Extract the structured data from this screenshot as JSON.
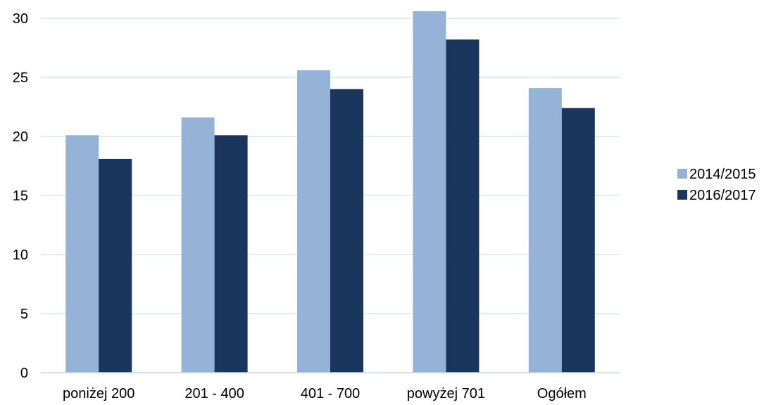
{
  "chart_data": {
    "type": "bar",
    "categories": [
      "poniżej 200",
      "201 - 400",
      "401 - 700",
      "powyżej 701",
      "Ogółem"
    ],
    "series": [
      {
        "name": "2014/2015",
        "values": [
          20.1,
          21.6,
          25.6,
          30.6,
          24.1
        ],
        "color": "#95b3d7"
      },
      {
        "name": "2016/2017",
        "values": [
          18.1,
          20.1,
          24.0,
          28.2,
          22.4
        ],
        "color": "#1b365d"
      }
    ],
    "ylim": [
      0,
      30
    ],
    "yticks": [
      0,
      5,
      10,
      15,
      20,
      25,
      30
    ],
    "grid": true,
    "gridColor": "#c6d9f1",
    "legend": "right",
    "title": "",
    "xlabel": "",
    "ylabel": ""
  }
}
